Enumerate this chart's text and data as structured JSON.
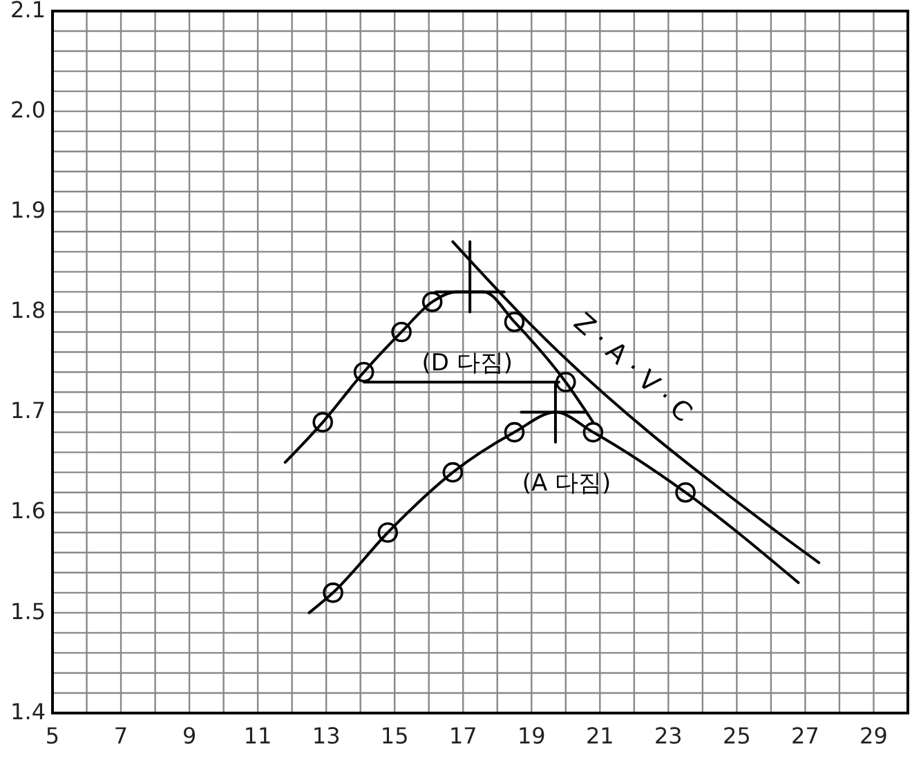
{
  "chart_data": {
    "type": "line",
    "xlim": [
      5,
      30
    ],
    "xticks": [
      5,
      {
        "value": 6,
        "label": null
      },
      7,
      {
        "value": 8,
        "label": null
      },
      9,
      {
        "value": 10,
        "label": null
      },
      11,
      {
        "value": 12,
        "label": null
      },
      13,
      {
        "value": 14,
        "label": null
      },
      15,
      {
        "value": 16,
        "label": null
      },
      17,
      {
        "value": 18,
        "label": null
      },
      19,
      {
        "value": 20,
        "label": null
      },
      21,
      {
        "value": 22,
        "label": null
      },
      23,
      {
        "value": 24,
        "label": null
      },
      25,
      {
        "value": 26,
        "label": null
      },
      27,
      {
        "value": 28,
        "label": null
      },
      29,
      {
        "value": 30,
        "label": null
      }
    ],
    "ylim": [
      1.4,
      2.1
    ],
    "yticks": [
      1.4,
      {
        "value": 1.42,
        "label": null
      },
      {
        "value": 1.44,
        "label": null
      },
      {
        "value": 1.46,
        "label": null
      },
      {
        "value": 1.48,
        "label": null
      },
      1.5,
      {
        "value": 1.52,
        "label": null
      },
      {
        "value": 1.54,
        "label": null
      },
      {
        "value": 1.56,
        "label": null
      },
      {
        "value": 1.58,
        "label": null
      },
      1.6,
      {
        "value": 1.62,
        "label": null
      },
      {
        "value": 1.64,
        "label": null
      },
      {
        "value": 1.66,
        "label": null
      },
      {
        "value": 1.68,
        "label": null
      },
      1.7,
      {
        "value": 1.72,
        "label": null
      },
      {
        "value": 1.74,
        "label": null
      },
      {
        "value": 1.76,
        "label": null
      },
      {
        "value": 1.78,
        "label": null
      },
      1.8,
      {
        "value": 1.82,
        "label": null
      },
      {
        "value": 1.84,
        "label": null
      },
      {
        "value": 1.86,
        "label": null
      },
      {
        "value": 1.88,
        "label": null
      },
      1.9,
      {
        "value": 1.92,
        "label": null
      },
      {
        "value": 1.94,
        "label": null
      },
      {
        "value": 1.96,
        "label": null
      },
      {
        "value": 1.98,
        "label": null
      },
      {
        "value": 2,
        "label": "2.0"
      },
      {
        "value": 2.02,
        "label": null
      },
      {
        "value": 2.04,
        "label": null
      },
      {
        "value": 2.06,
        "label": null
      },
      {
        "value": 2.08,
        "label": null
      },
      2.1
    ],
    "grid": true,
    "marker": "none",
    "series": [
      {
        "name": "(D 다짐)",
        "color": "#000000",
        "x": [
          11.8,
          12.9,
          14.1,
          15.2,
          16.1,
          16.8,
          17.6,
          18.5,
          20.0,
          20.8
        ],
        "values": [
          1.65,
          1.69,
          1.74,
          1.78,
          1.81,
          1.82,
          1.82,
          1.79,
          1.73,
          1.69
        ]
      },
      {
        "name": "(A 다짐)",
        "color": "#000000",
        "x": [
          12.5,
          13.2,
          14.8,
          16.7,
          18.5,
          19.7,
          20.8,
          23.5,
          26.8
        ],
        "values": [
          1.5,
          1.52,
          1.58,
          1.64,
          1.68,
          1.7,
          1.68,
          1.62,
          1.53
        ]
      },
      {
        "name": "Z · A · V · C",
        "color": "#000000",
        "x": [
          16.7,
          18.9,
          26.2,
          27.4
        ],
        "values": [
          1.87,
          1.79,
          1.58,
          1.55
        ]
      },
      {
        "type": "scatter",
        "marker": "circle",
        "color": "#000000",
        "x": [
          12.9,
          14.1,
          15.2,
          16.1,
          18.5,
          20.0
        ],
        "values": [
          1.69,
          1.74,
          1.78,
          1.81,
          1.79,
          1.73
        ]
      },
      {
        "type": "scatter",
        "marker": "circle",
        "color": "#000000",
        "x": [
          13.2,
          14.8,
          16.7,
          18.5,
          20.8,
          23.5
        ],
        "values": [
          1.52,
          1.58,
          1.64,
          1.68,
          1.68,
          1.62
        ]
      },
      {
        "type": "line",
        "color": "#000000",
        "x": [
          16.2,
          18.2
        ],
        "values": [
          1.82,
          1.82
        ]
      },
      {
        "type": "line",
        "color": "#000000",
        "x": [
          17.2,
          17.2
        ],
        "values": [
          1.87,
          1.8
        ]
      },
      {
        "type": "line",
        "color": "#000000",
        "x": [
          18.7,
          20.6
        ],
        "values": [
          1.7,
          1.7
        ]
      },
      {
        "type": "line",
        "color": "#000000",
        "x": [
          19.7,
          19.7
        ],
        "values": [
          1.73,
          1.67
        ]
      },
      {
        "type": "line",
        "color": "#000000",
        "x": [
          14.1,
          19.8
        ],
        "values": [
          1.73,
          1.73
        ]
      }
    ]
  }
}
